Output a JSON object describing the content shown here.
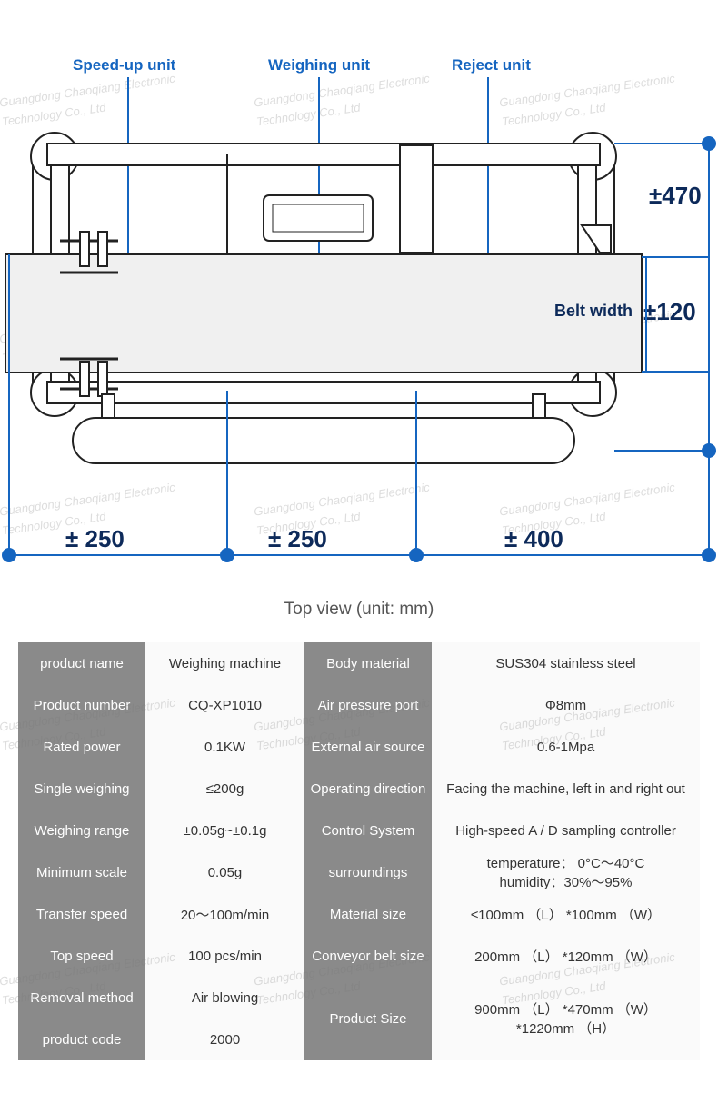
{
  "diagram": {
    "unit_labels": {
      "speedup": "Speed-up unit",
      "weighing": "Weighing unit",
      "reject": "Reject unit"
    },
    "belt_label": "Belt width",
    "dimensions": {
      "d250a": "± 250",
      "d250b": "± 250",
      "d400": "± 400",
      "d470": "±470",
      "d120": "±120"
    },
    "caption": "Top view (unit: mm)",
    "colors": {
      "accent": "#1565c0",
      "dim_text": "#0d2a5a",
      "machine_stroke": "#222222",
      "belt_fill": "#f0f0f0",
      "table_label_bg": "#8a8a8a",
      "table_value_bg": "#fafafa"
    }
  },
  "watermark_text": "Guangdong Chaoqiang Electronic\nTechnology Co., Ltd",
  "specs": {
    "rows": [
      {
        "l1": "product name",
        "v1": "Weighing machine",
        "l2": "Body material",
        "v2": "SUS304 stainless steel"
      },
      {
        "l1": "Product number",
        "v1": "CQ-XP1010",
        "l2": "Air pressure port",
        "v2": "Φ8mm"
      },
      {
        "l1": "Rated power",
        "v1": "0.1KW",
        "l2": "External air source",
        "v2": "0.6-1Mpa"
      },
      {
        "l1": "Single weighing",
        "v1": "≤200g",
        "l2": "Operating direction",
        "v2": "Facing the machine, left in and right out"
      },
      {
        "l1": "Weighing range",
        "v1": "±0.05g~±0.1g",
        "l2": "Control System",
        "v2": "High-speed A / D sampling controller"
      },
      {
        "l1": "Minimum scale",
        "v1": "0.05g",
        "l2": "surroundings",
        "v2": "temperature： 0°C～40°C\nhumidity：30%～95%"
      },
      {
        "l1": "Transfer speed",
        "v1": "20～100m/min",
        "l2": "Material size",
        "v2": "≤100mm （L） *100mm （W）"
      },
      {
        "l1": "Top speed",
        "v1": "100  pcs/min",
        "l2": "Conveyor belt size",
        "v2": "200mm （L） *120mm （W）"
      }
    ],
    "last_left": [
      {
        "l": "Removal method",
        "v": "Air blowing"
      },
      {
        "l": "product code",
        "v": "2000"
      }
    ],
    "last_right": {
      "l": "Product Size",
      "v": "900mm （L） *470mm （W）\n*1220mm （H）"
    }
  }
}
